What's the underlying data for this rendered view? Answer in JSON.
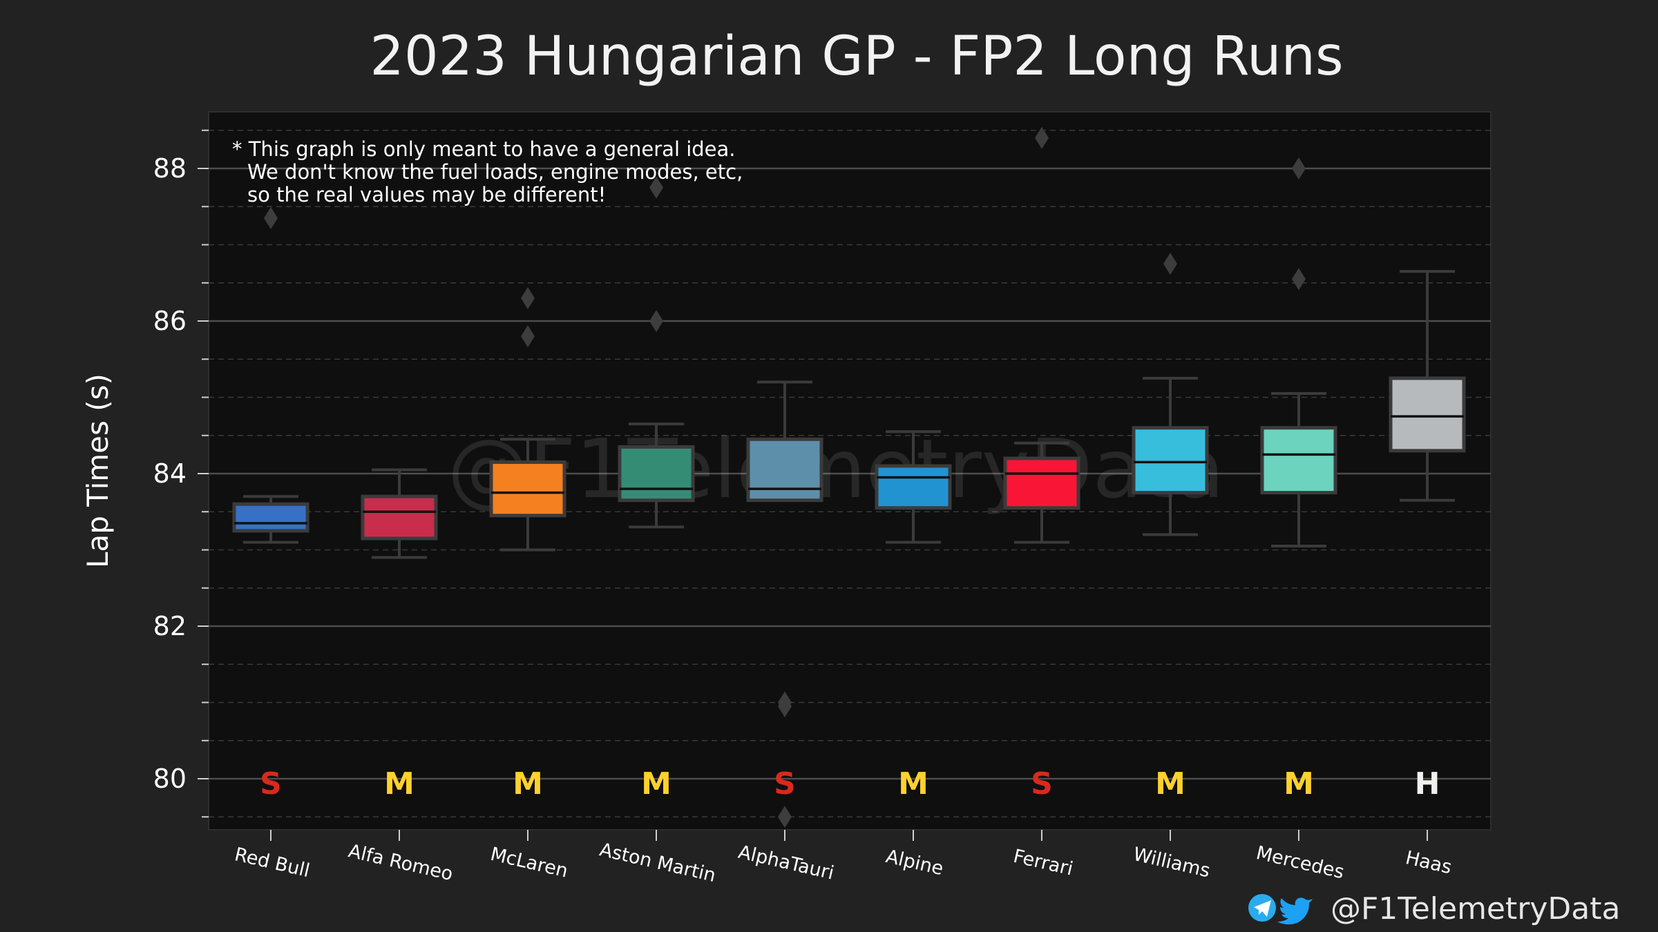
{
  "chart_data": {
    "type": "box",
    "title": "2023 Hungarian GP - FP2 Long Runs",
    "ylabel": "Lap Times (s)",
    "xlabel": "",
    "ylim": [
      79.5,
      88.75
    ],
    "y_major_ticks": [
      80,
      82,
      84,
      86,
      88
    ],
    "grid": "horizontal major solid, minor dashed",
    "note": [
      "* This graph is only meant to have a general idea.",
      "We don't know the fuel loads, engine modes, etc,",
      "so the real values may be different!"
    ],
    "categories": [
      "Red Bull",
      "Alfa Romeo",
      "McLaren",
      "Aston Martin",
      "AlphaTauri",
      "Alpine",
      "Ferrari",
      "Williams",
      "Mercedes",
      "Haas"
    ],
    "boxes": [
      {
        "team": "Red Bull",
        "color": "#3671C6",
        "whislo": 83.1,
        "q1": 83.25,
        "med": 83.35,
        "q3": 83.6,
        "whishi": 83.7,
        "fliers": [
          87.35
        ],
        "compound": "S"
      },
      {
        "team": "Alfa Romeo",
        "color": "#C92D4B",
        "whislo": 82.9,
        "q1": 83.15,
        "med": 83.5,
        "q3": 83.7,
        "whishi": 84.05,
        "fliers": [],
        "compound": "M"
      },
      {
        "team": "McLaren",
        "color": "#F58020",
        "whislo": 83.0,
        "q1": 83.45,
        "med": 83.75,
        "q3": 84.15,
        "whishi": 84.45,
        "fliers": [
          86.3,
          85.8
        ],
        "compound": "M"
      },
      {
        "team": "Aston Martin",
        "color": "#358C75",
        "whislo": 83.3,
        "q1": 83.65,
        "med": 83.8,
        "q3": 84.35,
        "whishi": 84.65,
        "fliers": [
          87.75,
          86.0
        ],
        "compound": "M"
      },
      {
        "team": "AlphaTauri",
        "color": "#5E8FAA",
        "whislo": 83.65,
        "q1": 83.65,
        "med": 83.8,
        "q3": 84.45,
        "whishi": 85.2,
        "fliers": [
          81.0,
          80.95,
          79.5
        ],
        "compound": "S"
      },
      {
        "team": "Alpine",
        "color": "#2293D1",
        "whislo": 83.1,
        "q1": 83.55,
        "med": 83.95,
        "q3": 84.1,
        "whishi": 84.55,
        "fliers": [],
        "compound": "M"
      },
      {
        "team": "Ferrari",
        "color": "#F91536",
        "whislo": 83.1,
        "q1": 83.55,
        "med": 84.0,
        "q3": 84.2,
        "whishi": 84.4,
        "fliers": [
          88.4
        ],
        "compound": "S"
      },
      {
        "team": "Williams",
        "color": "#37BEDD",
        "whislo": 83.2,
        "q1": 83.75,
        "med": 84.15,
        "q3": 84.6,
        "whishi": 85.25,
        "fliers": [
          86.75
        ],
        "compound": "M"
      },
      {
        "team": "Mercedes",
        "color": "#6CD3BF",
        "whislo": 83.05,
        "q1": 83.75,
        "med": 84.25,
        "q3": 84.6,
        "whishi": 85.05,
        "fliers": [
          88.0,
          86.55
        ],
        "compound": "M"
      },
      {
        "team": "Haas",
        "color": "#B6BABD",
        "whislo": 83.65,
        "q1": 84.3,
        "med": 84.75,
        "q3": 85.25,
        "whishi": 86.65,
        "fliers": [],
        "compound": "H"
      }
    ],
    "compound_colors": {
      "S": "#DA291C",
      "M": "#FFD12E",
      "H": "#F0F0EC"
    }
  },
  "watermark": "@F1TelemetryData",
  "footer": {
    "handle": "@F1TelemetryData",
    "icons": [
      "telegram-icon",
      "twitter-icon"
    ],
    "telegram_color": "#2AABEE",
    "twitter_color": "#1DA1F2"
  }
}
